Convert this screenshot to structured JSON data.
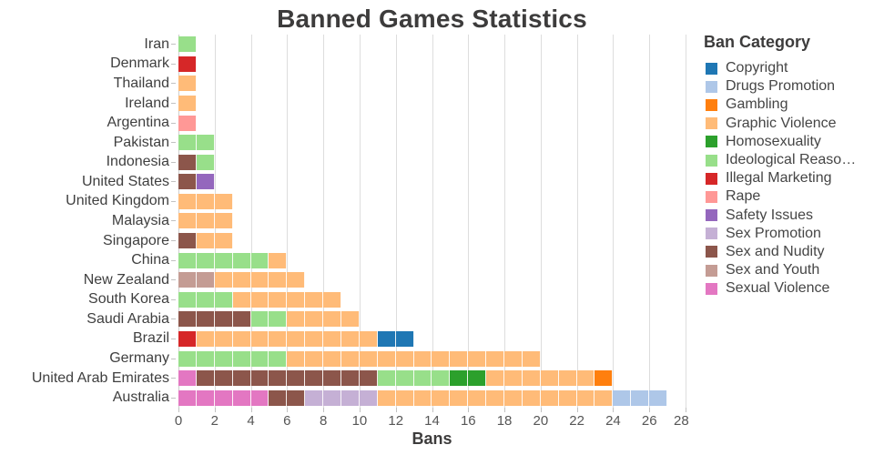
{
  "chart_data": {
    "type": "bar",
    "orientation": "horizontal",
    "stacked": true,
    "title": "Banned Games Statistics",
    "xlabel": "Bans",
    "ylabel": "",
    "xlim": [
      0,
      28
    ],
    "xticks": [
      0,
      2,
      4,
      6,
      8,
      10,
      12,
      14,
      16,
      18,
      20,
      22,
      24,
      26,
      28
    ],
    "grid": true,
    "legend": {
      "title": "Ban Category",
      "position": "right",
      "items": [
        {
          "label": "Copyright",
          "category": "Copyright"
        },
        {
          "label": "Drugs Promotion",
          "category": "Drugs Promotion"
        },
        {
          "label": "Gambling",
          "category": "Gambling"
        },
        {
          "label": "Graphic Violence",
          "category": "Graphic Violence"
        },
        {
          "label": "Homosexuality",
          "category": "Homosexuality"
        },
        {
          "label": "Ideological Reaso…",
          "category": "Ideological Reasons"
        },
        {
          "label": "Illegal Marketing",
          "category": "Illegal Marketing"
        },
        {
          "label": "Rape",
          "category": "Rape"
        },
        {
          "label": "Safety Issues",
          "category": "Safety Issues"
        },
        {
          "label": "Sex Promotion",
          "category": "Sex Promotion"
        },
        {
          "label": "Sex and Nudity",
          "category": "Sex and Nudity"
        },
        {
          "label": "Sex and Youth",
          "category": "Sex and Youth"
        },
        {
          "label": "Sexual Violence",
          "category": "Sexual Violence"
        }
      ]
    },
    "colors": {
      "Copyright": "#1f77b4",
      "Drugs Promotion": "#aec7e8",
      "Gambling": "#ff7f0e",
      "Graphic Violence": "#ffbb78",
      "Homosexuality": "#2ca02c",
      "Ideological Reasons": "#98df8a",
      "Illegal Marketing": "#d62728",
      "Rape": "#ff9896",
      "Safety Issues": "#9467bd",
      "Sex Promotion": "#c5b0d5",
      "Sex and Nudity": "#8c564b",
      "Sex and Youth": "#c49c94",
      "Sexual Violence": "#e377c2"
    },
    "rows": [
      {
        "country": "Iran",
        "total": 1,
        "segments": [
          {
            "category": "Ideological Reasons",
            "value": 1
          }
        ]
      },
      {
        "country": "Denmark",
        "total": 1,
        "segments": [
          {
            "category": "Illegal Marketing",
            "value": 1
          }
        ]
      },
      {
        "country": "Thailand",
        "total": 1,
        "segments": [
          {
            "category": "Graphic Violence",
            "value": 1
          }
        ]
      },
      {
        "country": "Ireland",
        "total": 1,
        "segments": [
          {
            "category": "Graphic Violence",
            "value": 1
          }
        ]
      },
      {
        "country": "Argentina",
        "total": 1,
        "segments": [
          {
            "category": "Rape",
            "value": 1
          }
        ]
      },
      {
        "country": "Pakistan",
        "total": 2,
        "segments": [
          {
            "category": "Ideological Reasons",
            "value": 2
          }
        ]
      },
      {
        "country": "Indonesia",
        "total": 2,
        "segments": [
          {
            "category": "Sex and Nudity",
            "value": 1
          },
          {
            "category": "Ideological Reasons",
            "value": 1
          }
        ]
      },
      {
        "country": "United States",
        "total": 2,
        "segments": [
          {
            "category": "Sex and Nudity",
            "value": 1
          },
          {
            "category": "Safety Issues",
            "value": 1
          }
        ]
      },
      {
        "country": "United Kingdom",
        "total": 3,
        "segments": [
          {
            "category": "Graphic Violence",
            "value": 3
          }
        ]
      },
      {
        "country": "Malaysia",
        "total": 3,
        "segments": [
          {
            "category": "Graphic Violence",
            "value": 3
          }
        ]
      },
      {
        "country": "Singapore",
        "total": 3,
        "segments": [
          {
            "category": "Sex and Nudity",
            "value": 1
          },
          {
            "category": "Graphic Violence",
            "value": 2
          }
        ]
      },
      {
        "country": "China",
        "total": 6,
        "segments": [
          {
            "category": "Ideological Reasons",
            "value": 5
          },
          {
            "category": "Graphic Violence",
            "value": 1
          }
        ]
      },
      {
        "country": "New Zealand",
        "total": 7,
        "segments": [
          {
            "category": "Sex and Youth",
            "value": 2
          },
          {
            "category": "Graphic Violence",
            "value": 5
          }
        ]
      },
      {
        "country": "South Korea",
        "total": 9,
        "segments": [
          {
            "category": "Ideological Reasons",
            "value": 3
          },
          {
            "category": "Graphic Violence",
            "value": 6
          }
        ]
      },
      {
        "country": "Saudi Arabia",
        "total": 10,
        "segments": [
          {
            "category": "Sex and Nudity",
            "value": 4
          },
          {
            "category": "Ideological Reasons",
            "value": 2
          },
          {
            "category": "Graphic Violence",
            "value": 4
          }
        ]
      },
      {
        "country": "Brazil",
        "total": 13,
        "segments": [
          {
            "category": "Illegal Marketing",
            "value": 1
          },
          {
            "category": "Graphic Violence",
            "value": 10
          },
          {
            "category": "Copyright",
            "value": 2
          }
        ]
      },
      {
        "country": "Germany",
        "total": 20,
        "segments": [
          {
            "category": "Ideological Reasons",
            "value": 6
          },
          {
            "category": "Graphic Violence",
            "value": 14
          }
        ]
      },
      {
        "country": "United Arab Emirates",
        "total": 24,
        "segments": [
          {
            "category": "Sexual Violence",
            "value": 1
          },
          {
            "category": "Sex and Nudity",
            "value": 10
          },
          {
            "category": "Ideological Reasons",
            "value": 4
          },
          {
            "category": "Homosexuality",
            "value": 2
          },
          {
            "category": "Graphic Violence",
            "value": 6
          },
          {
            "category": "Gambling",
            "value": 1
          }
        ]
      },
      {
        "country": "Australia",
        "total": 27,
        "segments": [
          {
            "category": "Sexual Violence",
            "value": 5
          },
          {
            "category": "Sex and Nudity",
            "value": 2
          },
          {
            "category": "Sex Promotion",
            "value": 4
          },
          {
            "category": "Graphic Violence",
            "value": 13
          },
          {
            "category": "Drugs Promotion",
            "value": 3
          }
        ]
      }
    ]
  }
}
